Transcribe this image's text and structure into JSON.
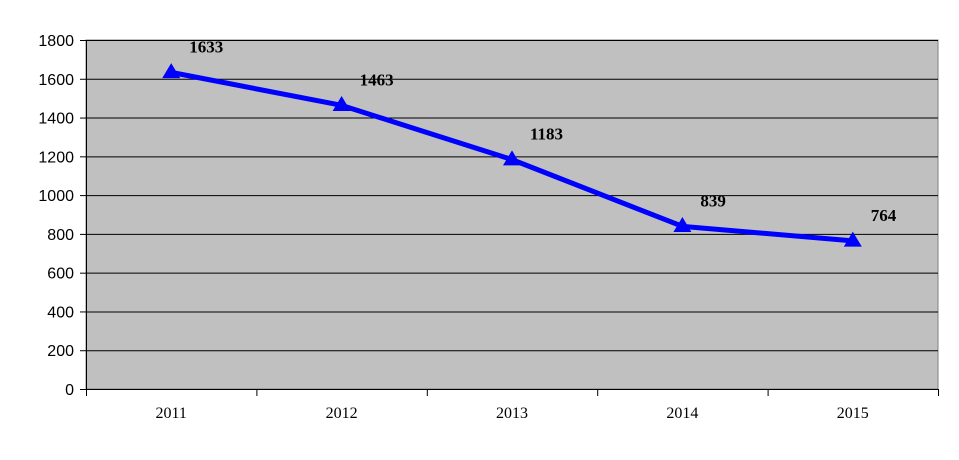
{
  "chart_data": {
    "type": "line",
    "categories": [
      "2011",
      "2012",
      "2013",
      "2014",
      "2015"
    ],
    "series": [
      {
        "values": [
          1633,
          1463,
          1183,
          839,
          764
        ]
      }
    ],
    "data_labels": [
      "1633",
      "1463",
      "1183",
      "839",
      "764"
    ],
    "y_ticks": [
      "0",
      "200",
      "400",
      "600",
      "800",
      "1000",
      "1200",
      "1400",
      "1600",
      "1800"
    ],
    "ylim": [
      0,
      1800
    ],
    "grid": true,
    "legend": "none",
    "marker": "triangle",
    "colors": {
      "series": "#0000ff",
      "plot_background": "#c0c0c0",
      "gridline": "#000000"
    }
  }
}
